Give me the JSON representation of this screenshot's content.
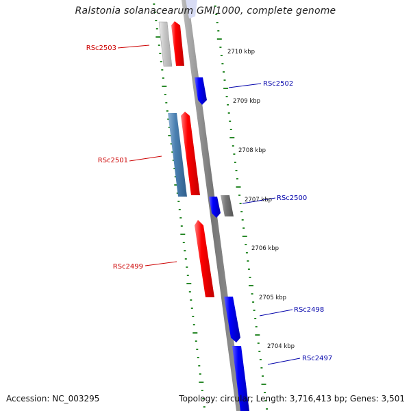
{
  "title": "Ralstonia solanacearum GMI1000, complete genome",
  "footer": {
    "accession": "Accession: NC_003295",
    "summary": "Topology: circular; Length: 3,716,413 bp; Genes: 3,501"
  },
  "colors": {
    "backbone": "#888888",
    "tick": "#2b8a2b",
    "minus_label": "#cc0000",
    "plus_label": "#0000aa",
    "red_gene": "#ff0000",
    "blue_gene": "#0000ff",
    "steelblue_gene": "#4a7fb0",
    "gray_gene": "#777777",
    "lightgray_gene": "#c8c8c8"
  },
  "kbp_labels": [
    "2710 kbp",
    "2709 kbp",
    "2708 kbp",
    "2707 kbp",
    "2706 kbp",
    "2705 kbp",
    "2704 kbp"
  ],
  "gene_labels": [
    {
      "name": "RSc2503",
      "strand": "minus"
    },
    {
      "name": "RSc2502",
      "strand": "plus"
    },
    {
      "name": "RSc2501",
      "strand": "minus"
    },
    {
      "name": "RSc2500",
      "strand": "plus"
    },
    {
      "name": "RSc2499",
      "strand": "minus"
    },
    {
      "name": "RSc2498",
      "strand": "plus"
    },
    {
      "name": "RSc2497",
      "strand": "plus"
    }
  ]
}
